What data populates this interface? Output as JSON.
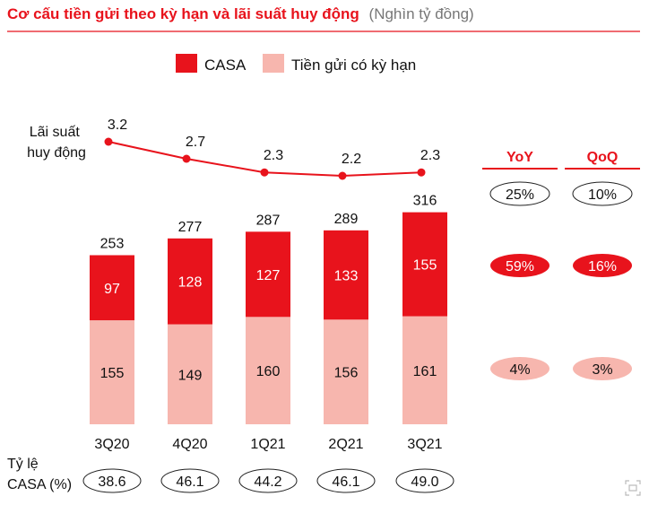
{
  "chart_data": {
    "type": "bar",
    "title": "Cơ cấu tiền gửi theo kỳ hạn và lãi suất huy động",
    "subtitle": "(Nghìn tỷ đồng)",
    "categories": [
      "3Q20",
      "4Q20",
      "1Q21",
      "2Q21",
      "3Q21"
    ],
    "legend_position": "top",
    "stacked": true,
    "series": [
      {
        "name": "Tiền gửi có kỳ hạn",
        "values": [
          155,
          149,
          160,
          156,
          161
        ],
        "color": "#f7b6ae"
      },
      {
        "name": "CASA",
        "values": [
          97,
          128,
          127,
          133,
          155
        ],
        "color": "#e8131c"
      }
    ],
    "totals": [
      253,
      277,
      287,
      289,
      316
    ],
    "rate_line": {
      "label_lines": [
        "Lãi suất",
        "huy động"
      ],
      "values": [
        3.2,
        2.7,
        2.3,
        2.2,
        2.3
      ],
      "color": "#e8131c"
    },
    "casa_ratio": {
      "label_lines": [
        "Tỷ lệ",
        "CASA (%)"
      ],
      "values": [
        "38.6",
        "46.1",
        "44.2",
        "46.1",
        "49.0"
      ]
    },
    "growth": {
      "headers": [
        "YoY",
        "QoQ"
      ],
      "rows": [
        {
          "values": [
            "25%",
            "10%"
          ],
          "style": "outline"
        },
        {
          "values": [
            "59%",
            "16%"
          ],
          "style": "solid"
        },
        {
          "values": [
            "4%",
            "3%"
          ],
          "style": "light"
        }
      ]
    },
    "colors": {
      "accent": "#e8131c",
      "light": "#f7b6ae",
      "text": "#111111",
      "subtle": "#777777"
    }
  }
}
